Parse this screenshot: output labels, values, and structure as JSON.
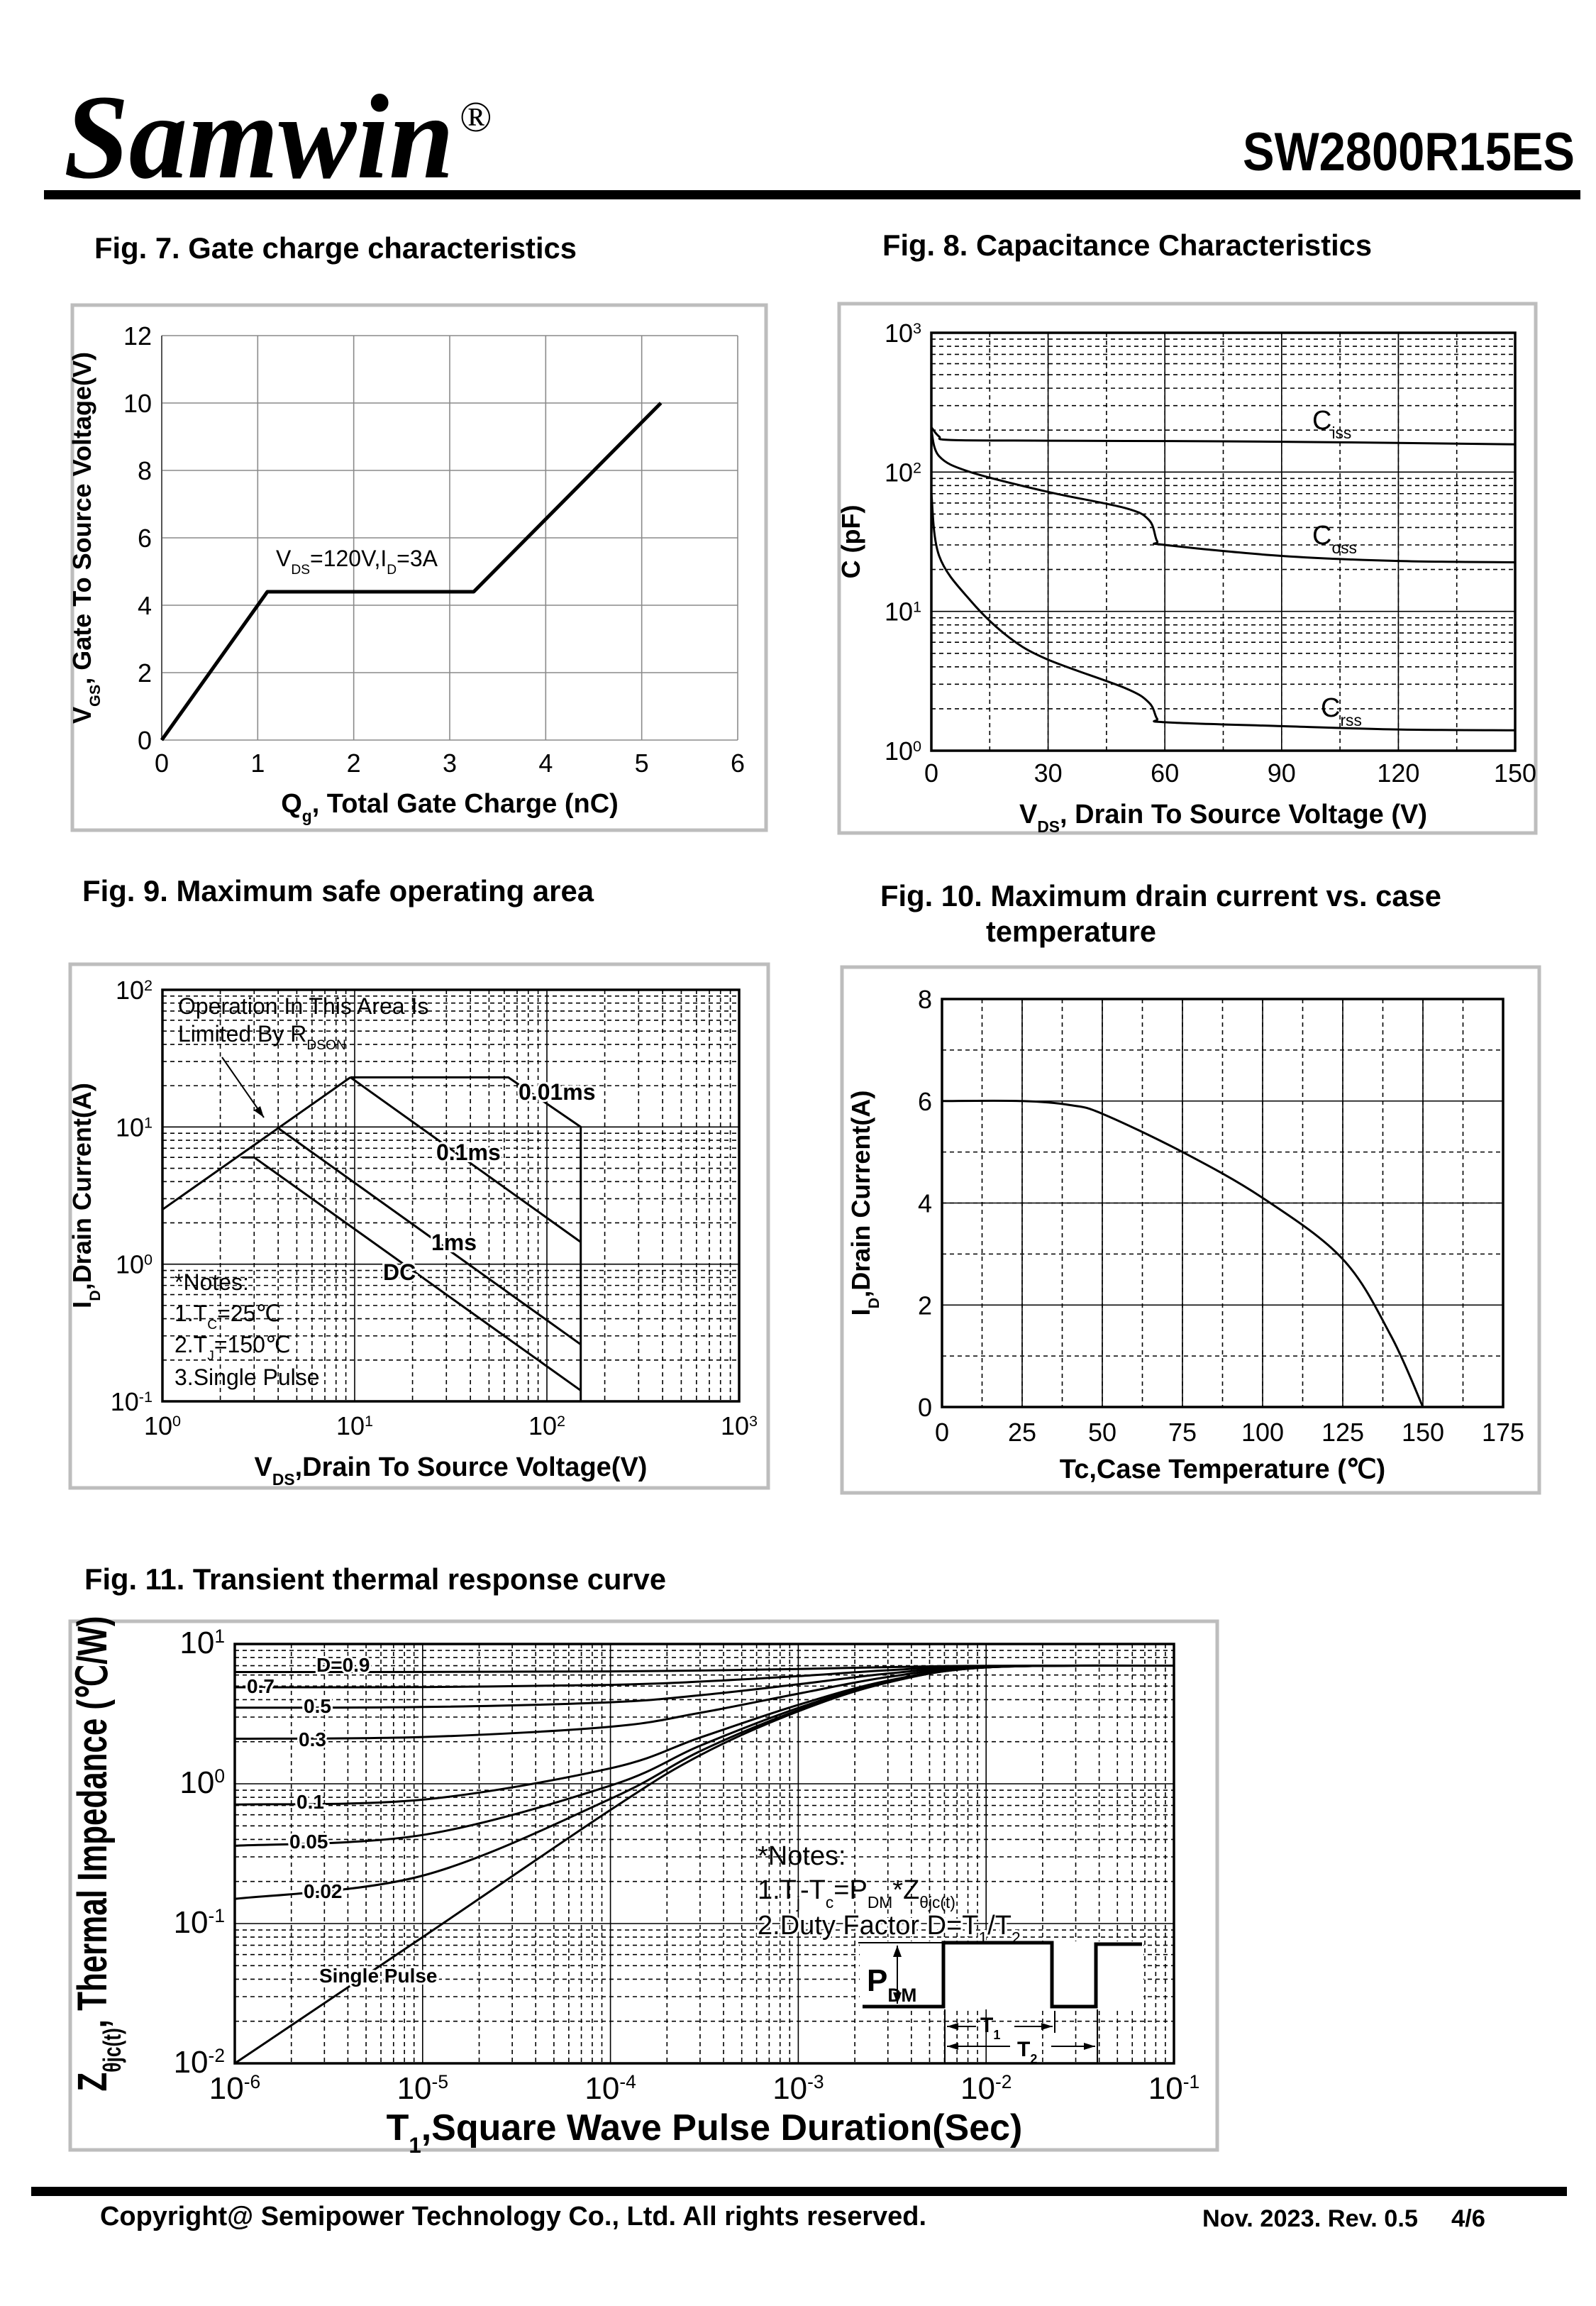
{
  "header": {
    "brand": "Samwin",
    "registered": "®",
    "part_number": "SW2800R15ES"
  },
  "colors": {
    "ink": "#000000",
    "frame": "#bdbdbd",
    "grid7": "#8a8a8a"
  },
  "fig7": {
    "title": "Fig. 7. Gate charge characteristics",
    "condition": [
      [
        "V"
      ],
      [
        "DS",
        "sub"
      ],
      [
        "=120V,I"
      ],
      [
        "D",
        "sub"
      ],
      [
        "=3A"
      ]
    ]
  },
  "fig8": {
    "title": "Fig. 8. Capacitance Characteristics",
    "labels": {
      "ciss": [
        [
          "C"
        ],
        [
          "iss",
          "sub"
        ]
      ],
      "coss": [
        [
          "C"
        ],
        [
          "oss",
          "sub"
        ]
      ],
      "crss": [
        [
          "C"
        ],
        [
          "rss",
          "sub"
        ]
      ]
    }
  },
  "fig9": {
    "title": "Fig. 9. Maximum safe operating area",
    "limit_note_1": "Operation In This Area Is",
    "limit_note_2": [
      [
        "Limited By R"
      ],
      [
        "DSON",
        "sub"
      ]
    ],
    "labels": {
      "p001": "0.01ms",
      "p01": "0.1ms",
      "p1": "1ms",
      "dc": "DC"
    },
    "notes_title": "*Notes:",
    "note1": [
      [
        "1.T"
      ],
      [
        "C",
        "sub"
      ],
      [
        "=25℃"
      ]
    ],
    "note2": [
      [
        "2.T"
      ],
      [
        "J",
        "sub"
      ],
      [
        "=150℃"
      ]
    ],
    "note3": "3.Single Pulse"
  },
  "fig10": {
    "title_line1": "Fig. 10. Maximum drain current vs. case",
    "title_line2": "temperature"
  },
  "fig11": {
    "title": "Fig. 11. Transient thermal response curve",
    "labels": {
      "d09": "D=0.9",
      "d07": "0.7",
      "d05": "0.5",
      "d03": "0.3",
      "d01": "0.1",
      "d005": "0.05",
      "d002": "0.02",
      "single": "Single Pulse"
    },
    "notes_title": "*Notes:",
    "note1": [
      [
        "1.T"
      ],
      [
        "j",
        "sub"
      ],
      [
        "-T"
      ],
      [
        "c",
        "sub"
      ],
      [
        "=P"
      ],
      [
        "DM",
        "sub"
      ],
      [
        "*Z"
      ],
      [
        "θjc(t)",
        "sub"
      ]
    ],
    "note2": [
      [
        "2.Duty Factor D=T"
      ],
      [
        "1",
        "sub"
      ],
      [
        "/T"
      ],
      [
        "2",
        "sub"
      ]
    ],
    "pdm": [
      [
        "P"
      ],
      [
        "DM",
        "sub"
      ]
    ],
    "t1": [
      [
        "T"
      ],
      [
        "1",
        "sub"
      ]
    ],
    "t2": [
      [
        "T"
      ],
      [
        "2",
        "sub"
      ]
    ]
  },
  "footer": {
    "copyright": "Copyright@ Semipower Technology Co., Ltd. All rights reserved.",
    "revision": "Nov. 2023. Rev. 0.5",
    "page": "4/6"
  },
  "chart_data": [
    {
      "id": "fig7",
      "type": "line",
      "xlabel": [
        [
          "Q"
        ],
        [
          "g",
          "sub"
        ],
        [
          ", Total Gate Charge (nC)"
        ]
      ],
      "ylabel": [
        [
          "V"
        ],
        [
          "GS",
          "sub"
        ],
        [
          ",  Gate To Source Voltage(V)"
        ]
      ],
      "xscale": "linear",
      "yscale": "linear",
      "xlim": [
        0,
        6
      ],
      "ylim": [
        0,
        12
      ],
      "x_ticks": [
        0,
        1,
        2,
        3,
        4,
        5,
        6
      ],
      "y_ticks": [
        0,
        2,
        4,
        6,
        8,
        10,
        12
      ],
      "grid": true,
      "series": [
        {
          "x": [
            0,
            1.1,
            3.25,
            5.2
          ],
          "y": [
            0,
            4.4,
            4.4,
            10
          ]
        }
      ]
    },
    {
      "id": "fig8",
      "type": "line",
      "xlabel": [
        [
          "V"
        ],
        [
          "DS",
          "sub"
        ],
        [
          ", Drain To Source Voltage (V)"
        ]
      ],
      "ylabel": [
        [
          "C (pF)"
        ]
      ],
      "xscale": "linear",
      "yscale": "log",
      "xlim": [
        0,
        150
      ],
      "ylim": [
        1,
        1000
      ],
      "x_ticks": [
        0,
        30,
        60,
        90,
        120,
        150
      ],
      "y_ticks": [
        1,
        10,
        100,
        1000
      ],
      "y_tick_labels": [
        [
          [
            "10"
          ],
          [
            "0",
            "sup"
          ]
        ],
        [
          [
            "10"
          ],
          [
            "1",
            "sup"
          ]
        ],
        [
          [
            "10"
          ],
          [
            "2",
            "sup"
          ]
        ],
        [
          [
            "10"
          ],
          [
            "3",
            "sup"
          ]
        ]
      ],
      "grid": true,
      "series": [
        {
          "name": "Ciss",
          "x": [
            0,
            2,
            5,
            30,
            60,
            90,
            120,
            150
          ],
          "y": [
            210,
            180,
            170,
            168,
            167,
            165,
            162,
            158
          ]
        },
        {
          "name": "Coss",
          "x": [
            0,
            2,
            10,
            30,
            50,
            56,
            58,
            60,
            90,
            120,
            150
          ],
          "y": [
            200,
            130,
            100,
            72,
            55,
            45,
            32,
            30,
            25,
            23,
            22.5
          ]
        },
        {
          "name": "Crss",
          "x": [
            0,
            2,
            10,
            20,
            30,
            50,
            56,
            58,
            60,
            90,
            120,
            150
          ],
          "y": [
            70,
            25,
            12,
            6.5,
            4.5,
            2.8,
            2.2,
            1.7,
            1.6,
            1.5,
            1.42,
            1.4
          ]
        }
      ]
    },
    {
      "id": "fig9",
      "type": "line",
      "xlabel": [
        [
          "V"
        ],
        [
          "DS",
          "sub"
        ],
        [
          ",Drain To Source Voltage(V)"
        ]
      ],
      "ylabel": [
        [
          "I"
        ],
        [
          "D",
          "sub"
        ],
        [
          ",Drain Current(A)"
        ]
      ],
      "xscale": "log",
      "yscale": "log",
      "xlim": [
        1,
        1000
      ],
      "ylim": [
        0.1,
        100
      ],
      "x_ticks": [
        1,
        10,
        100,
        1000
      ],
      "y_ticks": [
        0.1,
        1,
        10,
        100
      ],
      "x_tick_labels": [
        [
          [
            "10"
          ],
          [
            "0",
            "sup"
          ]
        ],
        [
          [
            "10"
          ],
          [
            "1",
            "sup"
          ]
        ],
        [
          [
            "10"
          ],
          [
            "2",
            "sup"
          ]
        ],
        [
          [
            "10"
          ],
          [
            "3",
            "sup"
          ]
        ]
      ],
      "y_tick_labels": [
        [
          [
            "10"
          ],
          [
            "-1",
            "sup"
          ]
        ],
        [
          [
            "10"
          ],
          [
            "0",
            "sup"
          ]
        ],
        [
          [
            "10"
          ],
          [
            "1",
            "sup"
          ]
        ],
        [
          [
            "10"
          ],
          [
            "2",
            "sup"
          ]
        ]
      ],
      "grid": true,
      "series": [
        {
          "name": "RDSON limit",
          "x": [
            1,
            9.5
          ],
          "y": [
            2.5,
            23
          ]
        },
        {
          "name": "0.01ms",
          "x": [
            9.5,
            63,
            150,
            150
          ],
          "y": [
            23,
            23,
            10,
            0.1
          ]
        },
        {
          "name": "0.1ms",
          "x": [
            9.5,
            150
          ],
          "y": [
            23,
            1.45
          ]
        },
        {
          "name": "1ms",
          "x": [
            4,
            150
          ],
          "y": [
            9.8,
            0.26
          ]
        },
        {
          "name": "DC",
          "x": [
            2.6,
            3,
            150
          ],
          "y": [
            6,
            6,
            0.12
          ]
        }
      ]
    },
    {
      "id": "fig10",
      "type": "line",
      "xlabel": [
        [
          "Tc,Case Temperature (℃)"
        ]
      ],
      "ylabel": [
        [
          "I"
        ],
        [
          "D",
          "sub"
        ],
        [
          ",Drain Current(A)"
        ]
      ],
      "xscale": "linear",
      "yscale": "linear",
      "xlim": [
        0,
        175
      ],
      "ylim": [
        0,
        8
      ],
      "x_ticks": [
        0,
        25,
        50,
        75,
        100,
        125,
        150,
        175
      ],
      "y_ticks": [
        0,
        2,
        4,
        6,
        8
      ],
      "grid": true,
      "series": [
        {
          "x": [
            0,
            25,
            40,
            50,
            75,
            100,
            125,
            140,
            150
          ],
          "y": [
            6,
            6,
            5.92,
            5.75,
            5.0,
            4.1,
            2.9,
            1.4,
            0
          ]
        }
      ]
    },
    {
      "id": "fig11",
      "type": "line",
      "xlabel": [
        [
          "T"
        ],
        [
          "1",
          "sub"
        ],
        [
          ",Square Wave Pulse Duration(Sec)"
        ]
      ],
      "ylabel": [
        [
          "Z"
        ],
        [
          "θjc(t)",
          "sub"
        ],
        [
          ", Thermal  Impedance (℃/W)"
        ]
      ],
      "xscale": "log",
      "yscale": "log",
      "xlim": [
        1e-06,
        0.1
      ],
      "ylim": [
        0.01,
        10
      ],
      "x_ticks": [
        1e-06,
        1e-05,
        0.0001,
        0.001,
        0.01,
        0.1
      ],
      "y_ticks": [
        0.01,
        0.1,
        1,
        10
      ],
      "x_tick_labels": [
        [
          [
            "10"
          ],
          [
            "-6",
            "sup"
          ]
        ],
        [
          [
            "10"
          ],
          [
            "-5",
            "sup"
          ]
        ],
        [
          [
            "10"
          ],
          [
            "-4",
            "sup"
          ]
        ],
        [
          [
            "10"
          ],
          [
            "-3",
            "sup"
          ]
        ],
        [
          [
            "10"
          ],
          [
            "-2",
            "sup"
          ]
        ],
        [
          [
            "10"
          ],
          [
            "-1",
            "sup"
          ]
        ]
      ],
      "y_tick_labels": [
        [
          [
            "10"
          ],
          [
            "-2",
            "sup"
          ]
        ],
        [
          [
            "10"
          ],
          [
            "-1",
            "sup"
          ]
        ],
        [
          [
            "10"
          ],
          [
            "0",
            "sup"
          ]
        ],
        [
          [
            "10"
          ],
          [
            "1",
            "sup"
          ]
        ]
      ],
      "grid": true,
      "series": [
        {
          "name": "D=0.9",
          "x": [
            1e-06,
            1e-05,
            0.0001,
            0.0003,
            0.001,
            0.003,
            0.01,
            0.1
          ],
          "y": [
            6.3,
            6.31,
            6.37,
            6.46,
            6.63,
            6.83,
            6.98,
            7.0
          ]
        },
        {
          "name": "0.7",
          "x": [
            1e-06,
            1e-05,
            0.0001,
            0.0003,
            0.001,
            0.003,
            0.01,
            0.1
          ],
          "y": [
            4.9,
            4.92,
            5.1,
            5.38,
            5.89,
            6.49,
            6.94,
            7.0
          ]
        },
        {
          "name": "0.5",
          "x": [
            1e-06,
            1e-05,
            0.0001,
            0.0003,
            0.001,
            0.003,
            0.01,
            0.1
          ],
          "y": [
            3.5,
            3.54,
            3.83,
            4.3,
            5.15,
            6.15,
            6.9,
            7.0
          ]
        },
        {
          "name": "0.3",
          "x": [
            1e-06,
            1e-05,
            0.0001,
            0.0003,
            0.001,
            0.003,
            0.01,
            0.1
          ],
          "y": [
            2.1,
            2.16,
            2.56,
            3.22,
            4.41,
            5.81,
            6.86,
            7.0
          ]
        },
        {
          "name": "0.1",
          "x": [
            1e-06,
            1e-05,
            0.0001,
            0.0003,
            0.001,
            0.003,
            0.01,
            0.1
          ],
          "y": [
            0.71,
            0.77,
            1.29,
            2.14,
            3.67,
            5.47,
            6.82,
            7.0
          ]
        },
        {
          "name": "0.05",
          "x": [
            1e-06,
            1e-05,
            0.0001,
            0.0003,
            0.001,
            0.003,
            0.01,
            0.1
          ],
          "y": [
            0.36,
            0.43,
            0.97,
            1.87,
            3.49,
            5.39,
            6.81,
            7.0
          ]
        },
        {
          "name": "0.02",
          "x": [
            1e-06,
            1e-05,
            0.0001,
            0.0003,
            0.001,
            0.003,
            0.01,
            0.1
          ],
          "y": [
            0.15,
            0.22,
            0.78,
            1.71,
            3.37,
            5.33,
            6.8,
            7.0
          ]
        },
        {
          "name": "Single Pulse",
          "x": [
            1e-06,
            1e-05,
            0.0001,
            0.0003,
            0.001,
            0.003,
            0.01,
            0.1
          ],
          "y": [
            0.01,
            0.08,
            0.65,
            1.6,
            3.3,
            5.3,
            6.8,
            7.0
          ]
        }
      ]
    }
  ]
}
